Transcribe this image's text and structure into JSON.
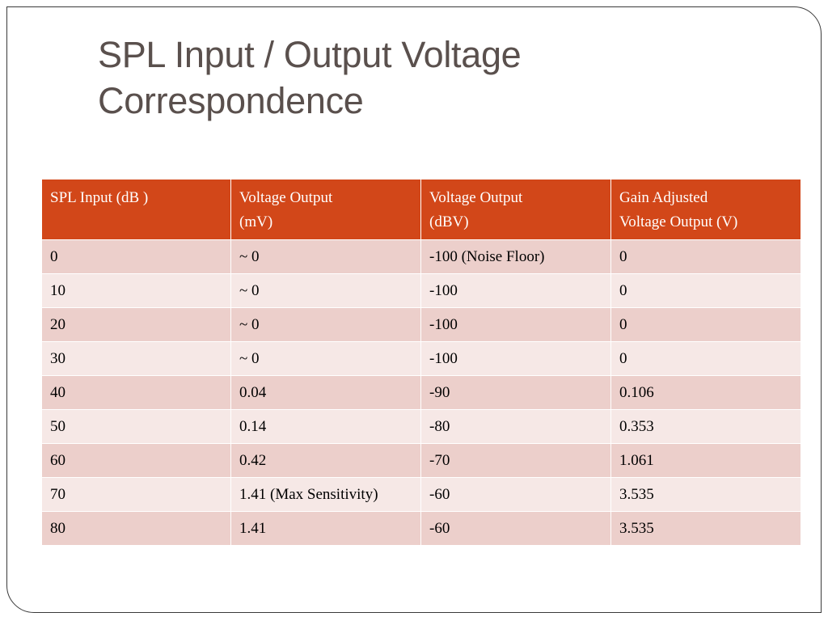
{
  "slide": {
    "title_line1": "SPL Input / Output Voltage",
    "title_line2": "Correspondence"
  },
  "table": {
    "headers": [
      {
        "line1": "SPL Input (dB )",
        "line2": ""
      },
      {
        "line1": "Voltage Output",
        "line2": "(mV)"
      },
      {
        "line1": "Voltage Output",
        "line2": "(dBV)"
      },
      {
        "line1": "Gain Adjusted",
        "line2": "Voltage Output (V)"
      }
    ],
    "rows": [
      [
        "0",
        "~ 0",
        "-100 (Noise Floor)",
        "0"
      ],
      [
        "10",
        "~ 0",
        "-100",
        "0"
      ],
      [
        "20",
        "~ 0",
        "-100",
        "0"
      ],
      [
        "30",
        "~ 0",
        "-100",
        "0"
      ],
      [
        "40",
        "0.04",
        "-90",
        "0.106"
      ],
      [
        "50",
        "0.14",
        "-80",
        "0.353"
      ],
      [
        "60",
        "0.42",
        "-70",
        "1.061"
      ],
      [
        "70",
        "1.41 (Max Sensitivity)",
        "-60",
        "3.535"
      ],
      [
        "80",
        "1.41",
        "-60",
        "3.535"
      ]
    ]
  },
  "colors": {
    "header_bg": "#d24719",
    "row_dark": "#eccfcb",
    "row_light": "#f6e8e6",
    "title_text": "#5a504d"
  }
}
